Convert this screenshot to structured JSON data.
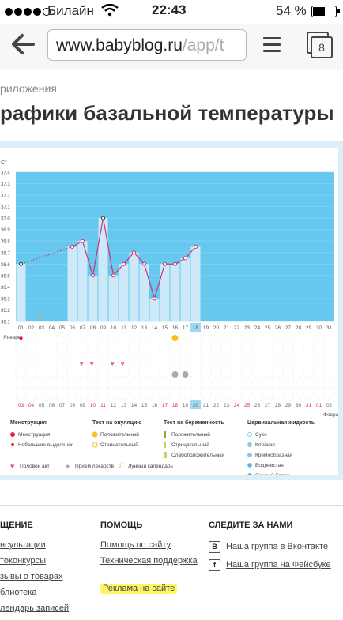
{
  "status_bar": {
    "carrier": "Билайн",
    "time": "22:43",
    "battery": "54 %",
    "battery_level": 0.54,
    "signal_bars": 4
  },
  "browser": {
    "url_main": "www.babyblog.ru",
    "url_dim": "/app/t",
    "tab_count": "8"
  },
  "page": {
    "breadcrumb": "риложения",
    "title": "рафики базальной температуры"
  },
  "chart_data": {
    "type": "line",
    "ylabel": "С°",
    "ylim": [
      36.1,
      37.4
    ],
    "yticks": [
      "37.4",
      "37.3",
      "37.2",
      "37.1",
      "37.0",
      "36.9",
      "36.8",
      "36.7",
      "36.6",
      "36.5",
      "36.4",
      "36.3",
      "36.2",
      "36.1"
    ],
    "x_days": [
      "01",
      "02",
      "03",
      "04",
      "05",
      "06",
      "07",
      "08",
      "09",
      "10",
      "11",
      "12",
      "13",
      "14",
      "15",
      "16",
      "17",
      "18",
      "19",
      "20",
      "21",
      "22",
      "23",
      "24",
      "25",
      "26",
      "27",
      "28",
      "29",
      "30",
      "31"
    ],
    "highlight_day": "18",
    "month_left": "Январь",
    "month_right": "Февраль",
    "series": [
      {
        "x": [
          1,
          6,
          7,
          8,
          9,
          10,
          11,
          12,
          13,
          14,
          15,
          16,
          17,
          18
        ],
        "y": [
          36.6,
          36.75,
          36.8,
          36.5,
          37.0,
          36.5,
          36.6,
          36.7,
          36.6,
          36.3,
          36.6,
          36.6,
          36.65,
          36.75
        ]
      }
    ],
    "date_row": [
      "03",
      "04",
      "05",
      "06",
      "07",
      "08",
      "09",
      "10",
      "11",
      "12",
      "13",
      "14",
      "15",
      "16",
      "17",
      "18",
      "19",
      "20",
      "21",
      "22",
      "23",
      "24",
      "25",
      "26",
      "27",
      "28",
      "29",
      "30",
      "31",
      "01",
      "02"
    ],
    "date_row_red": [
      "03",
      "04",
      "10",
      "11",
      "17",
      "18",
      "24",
      "25",
      "31",
      "01"
    ],
    "date_row_highlight": "20"
  },
  "legend": {
    "menstruation": {
      "title": "Менструация",
      "items": [
        "Менструация",
        "Небольшие выделения"
      ]
    },
    "ovulation": {
      "title": "Тест на овуляцию",
      "items": [
        "Положительный",
        "Отрицательный"
      ]
    },
    "pregnancy": {
      "title": "Тест на беременность",
      "items": [
        "Положительный",
        "Отрицательный",
        "Слабоположительный"
      ]
    },
    "cervical": {
      "title": "Цервикальная жидкость",
      "items": [
        "Сухо",
        "Клейкая",
        "Кремообразная",
        "Водянистая",
        "Яичный белок"
      ]
    },
    "bottom": [
      "Половой акт",
      "Прием лекарств",
      "Лунный календарь"
    ]
  },
  "footer": {
    "col1": {
      "title": "ЩЕНИЕ",
      "links": [
        "нсультации",
        "токонкурсы",
        "зывы о товарах",
        "блиотека",
        "лендарь записей"
      ]
    },
    "col2": {
      "title": "ПОМОЩЬ",
      "links": [
        "Помощь по сайту",
        "Техническая поддержка",
        "Реклама на сайте"
      ]
    },
    "col3": {
      "title": "СЛЕДИТЕ ЗА НАМИ",
      "links": [
        {
          "icon": "B",
          "label": "Наша группа в Вконтакте"
        },
        {
          "icon": "f",
          "label": "Наша группа на Фейсбуке"
        }
      ]
    }
  },
  "colors": {
    "chart_bg": "#66c8ee",
    "bar_fill": "#cde9f8",
    "line": "#cc3377",
    "red": "#e2253c",
    "yellow": "#f6c21f",
    "pink": "#e84a9a"
  }
}
